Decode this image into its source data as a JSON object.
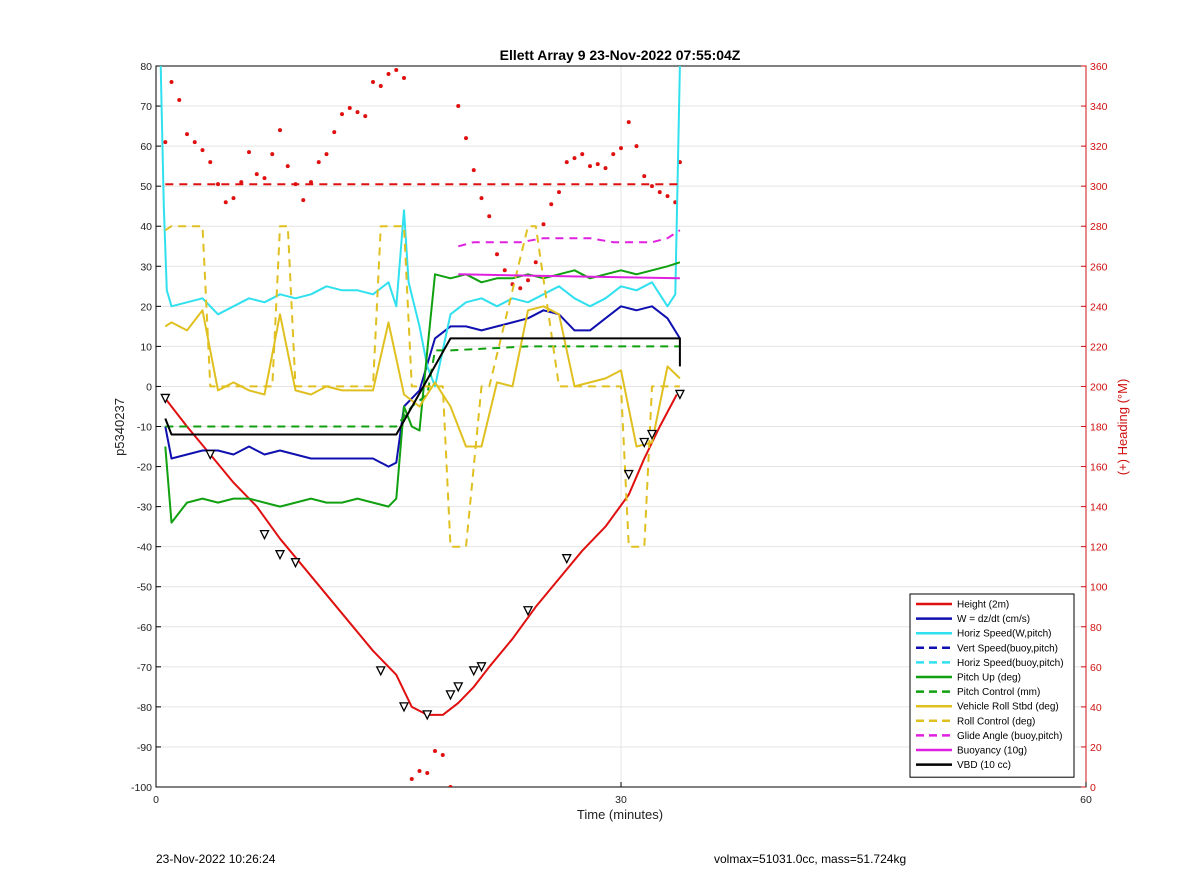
{
  "chart_data": {
    "type": "line",
    "title": "Ellett Array 9 23-Nov-2022 07:55:04Z",
    "xlabel": "Time (minutes)",
    "ylabel": "p5340237",
    "y2label": "(+) Heading (°M)",
    "xlim": [
      0,
      60
    ],
    "ylim": [
      -100,
      80
    ],
    "y2lim": [
      0,
      360
    ],
    "x_ticks": [
      0,
      30,
      60
    ],
    "y_ticks": [
      -100,
      -90,
      -80,
      -70,
      -60,
      -50,
      -40,
      -30,
      -20,
      -10,
      0,
      10,
      20,
      30,
      40,
      50,
      60,
      70,
      80
    ],
    "y2_ticks": [
      0,
      20,
      40,
      60,
      80,
      100,
      120,
      140,
      160,
      180,
      200,
      220,
      240,
      260,
      280,
      300,
      320,
      340,
      360
    ],
    "grid": true,
    "legend_position": "bottom-right",
    "series": [
      {
        "name": "Height (2m)",
        "color": "#e01010",
        "style": "solid",
        "width": 2,
        "x": [
          0.6,
          2,
          3.5,
          5,
          6.5,
          8,
          9.5,
          11,
          12.5,
          14,
          15.5,
          16.5,
          17.5,
          18.5,
          19.5,
          20.5,
          21.5,
          23,
          24.5,
          26,
          27.5,
          29,
          30.5,
          31.5,
          32.5,
          33.6
        ],
        "y": [
          -3,
          -10,
          -17,
          -24,
          -30,
          -38,
          -45,
          -52,
          -59,
          -66,
          -72,
          -80,
          -82,
          -82,
          -79,
          -75,
          -70,
          -63,
          -55,
          -48,
          -41,
          -35,
          -27,
          -18,
          -10,
          -2
        ]
      },
      {
        "name": "W = dz/dt (cm/s)",
        "color": "#1010b0",
        "style": "solid",
        "width": 2,
        "x": [
          0.6,
          1,
          2,
          3,
          4,
          5,
          6,
          7,
          8,
          9,
          10,
          11,
          12,
          13,
          14,
          15,
          15.5,
          16,
          17,
          18,
          19,
          20,
          21,
          22,
          23,
          24,
          25,
          26,
          27,
          28,
          29,
          30,
          31,
          32,
          33,
          33.8
        ],
        "y": [
          -10,
          -18,
          -17,
          -16,
          -16,
          -17,
          -15,
          -17,
          -16,
          -17,
          -18,
          -18,
          -18,
          -18,
          -18,
          -20,
          -19,
          -5,
          -1,
          12,
          15,
          15,
          14,
          15,
          16,
          17,
          19,
          18,
          14,
          14,
          17,
          20,
          19,
          20,
          17,
          12
        ]
      },
      {
        "name": "Horiz Speed(W,pitch)",
        "color": "#30e0ef",
        "style": "solid",
        "width": 2,
        "x": [
          0.3,
          0.5,
          0.7,
          1,
          2,
          3,
          4,
          5,
          6,
          7,
          8,
          9,
          10,
          11,
          12,
          13,
          14,
          15,
          15.5,
          16,
          16.3,
          17,
          17.5,
          18,
          19,
          20,
          21,
          22,
          23,
          24,
          25,
          26,
          27,
          28,
          29,
          30,
          31,
          32,
          33,
          33.5,
          33.8
        ],
        "y": [
          80,
          45,
          24,
          20,
          21,
          22,
          18,
          20,
          22,
          21,
          23,
          22,
          23,
          25,
          24,
          24,
          23,
          26,
          20,
          44,
          26,
          15,
          5,
          0,
          18,
          21,
          22,
          20,
          22,
          21,
          23,
          25,
          22,
          20,
          22,
          25,
          24,
          26,
          20,
          23,
          80
        ]
      },
      {
        "name": "Vert Speed(buoy,pitch)",
        "color": "#1010b0",
        "style": "dashed",
        "width": 2,
        "x": [],
        "y": []
      },
      {
        "name": "Horiz Speed(buoy,pitch)",
        "color": "#30e0ef",
        "style": "dashed",
        "width": 2,
        "x": [],
        "y": []
      },
      {
        "name": "Pitch Up (deg)",
        "color": "#10a010",
        "style": "solid",
        "width": 2,
        "x": [
          0.6,
          1,
          2,
          3,
          4,
          5,
          6,
          7,
          8,
          9,
          10,
          11,
          12,
          13,
          14,
          15,
          15.5,
          16,
          16.5,
          17,
          17.5,
          18,
          19,
          20,
          21,
          22,
          23,
          24,
          25,
          26,
          27,
          28,
          29,
          30,
          31,
          32,
          33,
          33.8
        ],
        "y": [
          -15,
          -34,
          -29,
          -28,
          -29,
          -28,
          -28,
          -29,
          -30,
          -29,
          -28,
          -29,
          -29,
          -28,
          -29,
          -30,
          -28,
          -5,
          -10,
          -11,
          9,
          28,
          27,
          28,
          26,
          27,
          27,
          28,
          27,
          28,
          29,
          27,
          28,
          29,
          28,
          29,
          30,
          31
        ]
      },
      {
        "name": "Pitch Control (mm)",
        "color": "#10a010",
        "style": "dashed",
        "width": 2,
        "x": [
          0.6,
          15.5,
          16.5,
          17.5,
          18,
          19,
          24,
          30,
          33.8
        ],
        "y": [
          -10,
          -10,
          -5,
          -2,
          9,
          9,
          10,
          10,
          10
        ]
      },
      {
        "name": "Vehicle Roll Stbd (deg)",
        "color": "#e0c020",
        "style": "solid",
        "width": 2,
        "x": [
          0.6,
          1,
          2,
          3,
          4,
          5,
          6,
          7,
          8,
          9,
          10,
          11,
          12,
          13,
          14,
          15,
          16,
          17,
          18,
          19,
          20,
          21,
          22,
          23,
          24,
          25,
          26,
          27,
          28,
          29,
          30,
          31,
          32,
          33,
          33.8
        ],
        "y": [
          15,
          16,
          14,
          19,
          -1,
          1,
          -1,
          -2,
          18,
          -1,
          -2,
          0,
          -1,
          -1,
          -1,
          16,
          -2,
          -5,
          1,
          -5,
          -15,
          -15,
          1,
          0,
          19,
          20,
          18,
          0,
          1,
          2,
          4,
          -15,
          -14,
          5,
          2
        ]
      },
      {
        "name": "Roll Control (deg)",
        "color": "#e0c020",
        "style": "dashed",
        "width": 2,
        "x": [
          0.6,
          1,
          3,
          3.5,
          7.5,
          8,
          8.5,
          9,
          14,
          14.5,
          16,
          16.5,
          18.5,
          19,
          20,
          21,
          21.5,
          24,
          24.5,
          26,
          26.5,
          30,
          30.5,
          31.5,
          32,
          33.8
        ],
        "y": [
          39,
          40,
          40,
          0,
          0,
          40,
          40,
          0,
          0,
          40,
          40,
          0,
          0,
          -40,
          -40,
          0,
          0,
          40,
          40,
          0,
          0,
          0,
          -40,
          -40,
          0,
          0
        ]
      },
      {
        "name": "Glide Angle (buoy,pitch)",
        "color": "#e020e0",
        "style": "dashed",
        "width": 2,
        "x": [
          19.5,
          20.5,
          22,
          23.5,
          25,
          26.5,
          28,
          29.5,
          31,
          32,
          33,
          33.8
        ],
        "y": [
          35,
          36,
          36,
          36,
          37,
          37,
          37,
          36,
          36,
          36,
          37,
          39
        ]
      },
      {
        "name": "Buoyancy (10g)",
        "color": "#e020e0",
        "style": "solid",
        "width": 2,
        "x": [
          19.5,
          33.8
        ],
        "y": [
          28,
          27
        ]
      },
      {
        "name": "VBD (10 cc)",
        "color": "#000000",
        "style": "solid",
        "width": 2,
        "x": [
          0.6,
          1,
          15.5,
          19,
          33.8,
          33.8
        ],
        "y": [
          -8,
          -12,
          -12,
          12,
          12,
          5
        ]
      },
      {
        "name": "",
        "color": "#e01010",
        "style": "dashed",
        "width": 2,
        "axis": "right",
        "x": [
          0.6,
          33.8
        ],
        "y": [
          301,
          301
        ]
      }
    ],
    "heading_points": {
      "color": "#e01010",
      "axis": "right",
      "x": [
        0.6,
        1,
        1.5,
        2,
        2.5,
        3,
        3.5,
        4,
        4.5,
        5,
        5.5,
        6,
        6.5,
        7,
        7.5,
        8,
        8.5,
        9,
        9.5,
        10,
        10.5,
        11,
        11.5,
        12,
        12.5,
        13,
        13.5,
        14,
        14.5,
        15,
        15.5,
        16,
        16.5,
        17,
        17.5,
        18,
        18.5,
        19,
        19.5,
        20,
        20.5,
        21,
        21.5,
        22,
        22.5,
        23,
        23.5,
        24,
        24.5,
        25,
        25.5,
        26,
        26.5,
        27,
        27.5,
        28,
        28.5,
        29,
        29.5,
        30,
        30.5,
        31,
        31.5,
        32,
        32.5,
        33,
        33.5,
        33.8
      ],
      "y": [
        322,
        352,
        343,
        326,
        322,
        318,
        312,
        301,
        292,
        294,
        302,
        317,
        306,
        304,
        316,
        328,
        310,
        301,
        293,
        302,
        312,
        316,
        327,
        336,
        339,
        337,
        335,
        352,
        350,
        356,
        358,
        354,
        4,
        8,
        7,
        18,
        16,
        0,
        340,
        324,
        308,
        294,
        285,
        266,
        258,
        251,
        249,
        253,
        262,
        281,
        291,
        297,
        312,
        314,
        316,
        310,
        311,
        309,
        316,
        319,
        332,
        320,
        305,
        300,
        297,
        295,
        292,
        312
      ]
    },
    "triangle_markers": {
      "x": [
        0.6,
        3.5,
        7,
        8,
        9,
        14.5,
        16,
        17.5,
        19,
        19.5,
        20.5,
        21,
        24,
        26.5,
        30.5,
        31.5,
        32,
        33.8
      ],
      "y": [
        -3,
        -17,
        -37,
        -42,
        -44,
        -71,
        -80,
        -82,
        -77,
        -75,
        -71,
        -70,
        -56,
        -43,
        -22,
        -14,
        -12,
        -2
      ]
    }
  },
  "footer": {
    "left": "23-Nov-2022 10:26:24",
    "right": "volmax=51031.0cc, mass=51.724kg"
  }
}
